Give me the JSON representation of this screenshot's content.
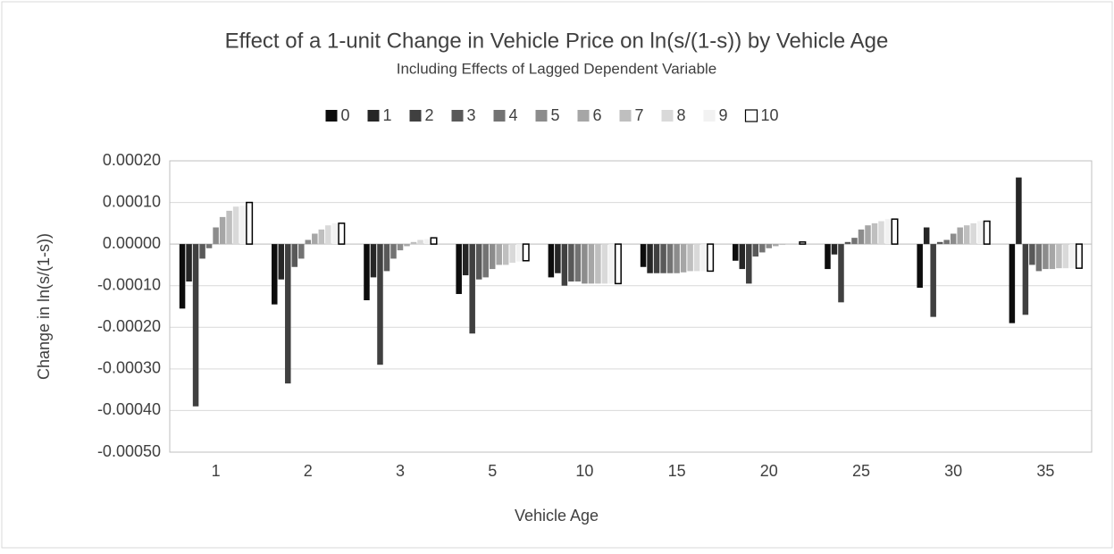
{
  "chart_data": {
    "type": "bar",
    "title": "Effect of a 1-unit Change in Vehicle Price on ln(s/(1-s)) by Vehicle Age",
    "subtitle": "Including Effects of Lagged Dependent Variable",
    "x_label": "Vehicle Age",
    "y_label": "Change in ln(s/(1-s))",
    "categories": [
      "1",
      "2",
      "3",
      "5",
      "10",
      "15",
      "20",
      "25",
      "30",
      "35"
    ],
    "series": [
      {
        "name": "0",
        "color": "#0d0d0d",
        "values": [
          -0.000155,
          -0.000145,
          -0.000135,
          -0.00012,
          -8e-05,
          -5.5e-05,
          -4e-05,
          -6e-05,
          -0.000105,
          -0.00019
        ]
      },
      {
        "name": "1",
        "color": "#262626",
        "values": [
          -9e-05,
          -8.5e-05,
          -8e-05,
          -7.5e-05,
          -7e-05,
          -7e-05,
          -6e-05,
          -2.5e-05,
          4e-05,
          0.00016
        ]
      },
      {
        "name": "2",
        "color": "#404040",
        "values": [
          -0.00039,
          -0.000335,
          -0.00029,
          -0.000215,
          -0.0001,
          -7e-05,
          -9.5e-05,
          -0.00014,
          -0.000175,
          -0.00017
        ]
      },
      {
        "name": "3",
        "color": "#595959",
        "values": [
          -3.5e-05,
          -5.5e-05,
          -6.5e-05,
          -8.5e-05,
          -9e-05,
          -7e-05,
          -3e-05,
          5e-06,
          5e-06,
          -5e-05
        ]
      },
      {
        "name": "4",
        "color": "#737373",
        "values": [
          -1e-05,
          -3.5e-05,
          -3.5e-05,
          -8e-05,
          -9e-05,
          -7e-05,
          -2e-05,
          1.5e-05,
          1e-05,
          -6.5e-05
        ]
      },
      {
        "name": "5",
        "color": "#8c8c8c",
        "values": [
          4e-05,
          1e-05,
          -1.5e-05,
          -6e-05,
          -9.5e-05,
          -7e-05,
          -1e-05,
          3.5e-05,
          2.5e-05,
          -6e-05
        ]
      },
      {
        "name": "6",
        "color": "#a6a6a6",
        "values": [
          6.5e-05,
          2.5e-05,
          -5e-06,
          -5e-05,
          -9.5e-05,
          -6.8e-05,
          -5e-06,
          4.5e-05,
          4e-05,
          -6e-05
        ]
      },
      {
        "name": "7",
        "color": "#bfbfbf",
        "values": [
          8e-05,
          3.5e-05,
          5e-06,
          -5e-05,
          -9.5e-05,
          -6.5e-05,
          -2e-06,
          5e-05,
          4.5e-05,
          -5.8e-05
        ]
      },
      {
        "name": "8",
        "color": "#d9d9d9",
        "values": [
          9e-05,
          4.5e-05,
          1e-05,
          -4.5e-05,
          -9.5e-05,
          -6.5e-05,
          0,
          5.5e-05,
          5e-05,
          -5.8e-05
        ]
      },
      {
        "name": "9",
        "color": "#f2f2f2",
        "values": [
          9.2e-05,
          5e-05,
          1.2e-05,
          -4.2e-05,
          -9.5e-05,
          -6.5e-05,
          0,
          6e-05,
          5.5e-05,
          -5.8e-05
        ]
      },
      {
        "name": "10",
        "color": "#ffffff",
        "values": [
          0.0001,
          5e-05,
          1.5e-05,
          -4e-05,
          -9.5e-05,
          -6.5e-05,
          5e-06,
          6e-05,
          5.5e-05,
          -5.8e-05
        ]
      }
    ],
    "ylim": [
      -0.0005,
      0.0002
    ],
    "yticks": [
      {
        "value": -0.0005,
        "label": "-0.00050"
      },
      {
        "value": -0.0004,
        "label": "-0.00040"
      },
      {
        "value": -0.0003,
        "label": "-0.00030"
      },
      {
        "value": -0.0002,
        "label": "-0.00020"
      },
      {
        "value": -0.0001,
        "label": "-0.00010"
      },
      {
        "value": 0,
        "label": "0.00000"
      },
      {
        "value": 0.0001,
        "label": "0.00010"
      },
      {
        "value": 0.0002,
        "label": "0.00020"
      }
    ],
    "grid": true,
    "legend": "top"
  }
}
